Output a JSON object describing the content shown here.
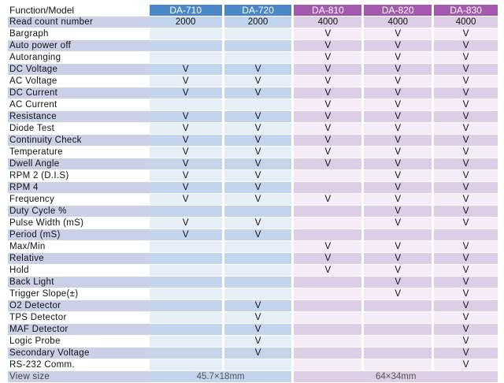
{
  "header": {
    "function_label": "Function/Model",
    "models": [
      "DA-710",
      "DA-720",
      "DA-810",
      "DA-820",
      "DA-830"
    ]
  },
  "rows": [
    {
      "feature": "Read count number",
      "values": [
        "2000",
        "2000",
        "4000",
        "4000",
        "4000"
      ]
    },
    {
      "feature": "Bargraph",
      "values": [
        "",
        "",
        "V",
        "V",
        "V"
      ]
    },
    {
      "feature": "Auto power off",
      "values": [
        "",
        "",
        "V",
        "V",
        "V"
      ]
    },
    {
      "feature": "Autoranging",
      "values": [
        "",
        "",
        "V",
        "V",
        "V"
      ]
    },
    {
      "feature": "DC Voltage",
      "values": [
        "V",
        "V",
        "V",
        "V",
        "V"
      ]
    },
    {
      "feature": "AC Voltage",
      "values": [
        "V",
        "V",
        "V",
        "V",
        "V"
      ]
    },
    {
      "feature": "DC Current",
      "values": [
        "V",
        "V",
        "V",
        "V",
        "V"
      ]
    },
    {
      "feature": "AC Current",
      "values": [
        "",
        "",
        "V",
        "V",
        "V"
      ]
    },
    {
      "feature": "Resistance",
      "values": [
        "V",
        "V",
        "V",
        "V",
        "V"
      ]
    },
    {
      "feature": "Diode Test",
      "values": [
        "V",
        "V",
        "V",
        "V",
        "V"
      ]
    },
    {
      "feature": "Continuity Check",
      "values": [
        "V",
        "V",
        "V",
        "V",
        "V"
      ]
    },
    {
      "feature": "Temperature",
      "values": [
        "V",
        "V",
        "V",
        "V",
        "V"
      ]
    },
    {
      "feature": "Dwell Angle",
      "values": [
        "V",
        "V",
        "V",
        "V",
        "V"
      ]
    },
    {
      "feature": "RPM 2 (D.I.S)",
      "values": [
        "V",
        "V",
        "",
        "V",
        "V"
      ]
    },
    {
      "feature": "RPM 4",
      "values": [
        "V",
        "V",
        "",
        "V",
        "V"
      ]
    },
    {
      "feature": "Frequency",
      "values": [
        "V",
        "V",
        "V",
        "V",
        "V"
      ]
    },
    {
      "feature": "Duty Cycle %",
      "values": [
        "",
        "",
        "",
        "V",
        "V"
      ]
    },
    {
      "feature": "Pulse Width (mS)",
      "values": [
        "V",
        "V",
        "",
        "V",
        "V"
      ]
    },
    {
      "feature": "Period (mS)",
      "values": [
        "V",
        "V",
        "",
        "",
        ""
      ]
    },
    {
      "feature": "Max/Min",
      "values": [
        "",
        "",
        "V",
        "V",
        "V"
      ]
    },
    {
      "feature": "Relative",
      "values": [
        "",
        "",
        "V",
        "V",
        "V"
      ]
    },
    {
      "feature": "Hold",
      "values": [
        "",
        "",
        "V",
        "V",
        "V"
      ]
    },
    {
      "feature": "Back Light",
      "values": [
        "",
        "",
        "",
        "V",
        "V"
      ]
    },
    {
      "feature": "Trigger Slope(±)",
      "values": [
        "",
        "",
        "",
        "V",
        "V"
      ]
    },
    {
      "feature": "O2 Detector",
      "values": [
        "",
        "V",
        "",
        "",
        "V"
      ]
    },
    {
      "feature": "TPS Detector",
      "values": [
        "",
        "V",
        "",
        "",
        "V"
      ]
    },
    {
      "feature": "MAF Detector",
      "values": [
        "",
        "V",
        "",
        "",
        "V"
      ]
    },
    {
      "feature": "Logic Probe",
      "values": [
        "",
        "V",
        "",
        "",
        "V"
      ]
    },
    {
      "feature": "Secondary Voltage",
      "values": [
        "",
        "V",
        "",
        "",
        "V"
      ]
    },
    {
      "feature": "RS-232 Comm.",
      "values": [
        "",
        "",
        "",
        "",
        "V"
      ]
    }
  ],
  "footer": {
    "label": "View size",
    "da7_size": "45.7×18mm",
    "da8_size": "64×34mm"
  },
  "colors": {
    "da7_header": "#4b86c6",
    "da8_header": "#a35aae"
  }
}
